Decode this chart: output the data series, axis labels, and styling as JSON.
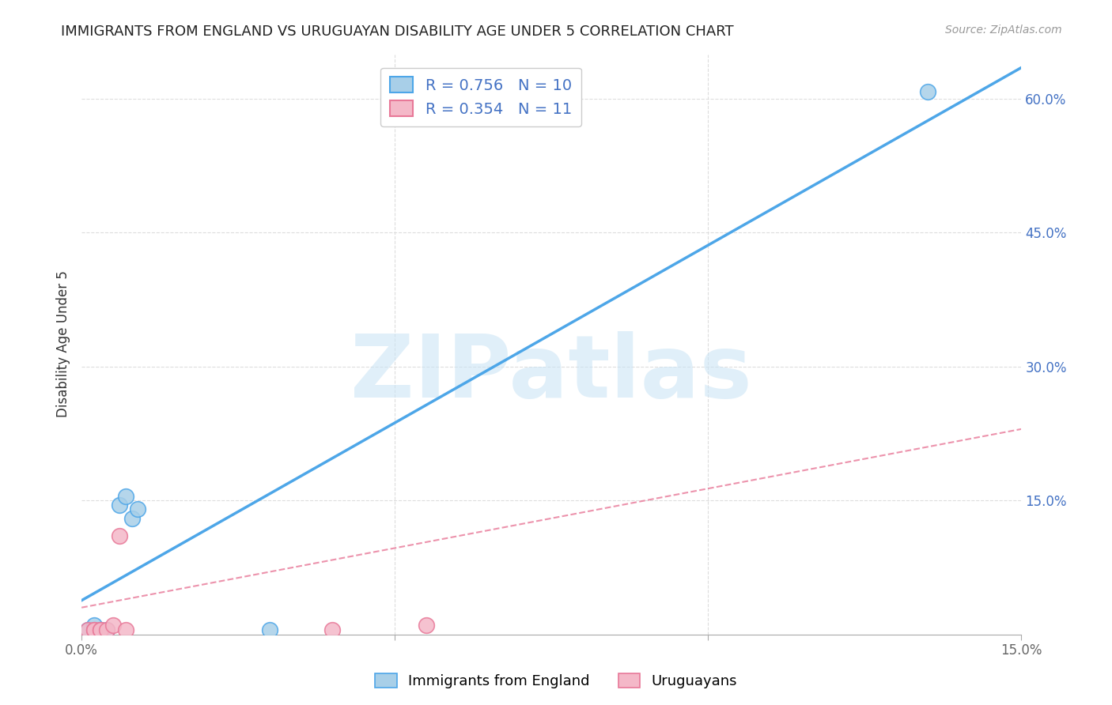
{
  "title": "IMMIGRANTS FROM ENGLAND VS URUGUAYAN DISABILITY AGE UNDER 5 CORRELATION CHART",
  "source": "Source: ZipAtlas.com",
  "ylabel": "Disability Age Under 5",
  "xlabel": "",
  "watermark": "ZIPatlas",
  "xlim": [
    0.0,
    0.15
  ],
  "ylim": [
    0.0,
    0.65
  ],
  "xticks": [
    0.0,
    0.05,
    0.1,
    0.15
  ],
  "xticklabels": [
    "0.0%",
    "",
    "",
    "15.0%"
  ],
  "yticks_right": [
    0.15,
    0.3,
    0.45,
    0.6
  ],
  "ytick_labels_right": [
    "15.0%",
    "30.0%",
    "45.0%",
    "60.0%"
  ],
  "england_x": [
    0.001,
    0.002,
    0.003,
    0.004,
    0.006,
    0.007,
    0.008,
    0.009,
    0.03,
    0.135
  ],
  "england_y": [
    0.005,
    0.01,
    0.005,
    0.005,
    0.145,
    0.155,
    0.13,
    0.14,
    0.005,
    0.608
  ],
  "uruguay_x": [
    0.001,
    0.002,
    0.002,
    0.003,
    0.003,
    0.004,
    0.005,
    0.006,
    0.007,
    0.04,
    0.055
  ],
  "uruguay_y": [
    0.005,
    0.005,
    0.005,
    0.005,
    0.005,
    0.005,
    0.01,
    0.11,
    0.005,
    0.005,
    0.01
  ],
  "england_color": "#a8cfe8",
  "uruguay_color": "#f4b8c8",
  "england_line_color": "#4da6e8",
  "uruguay_line_color": "#e87898",
  "eng_line_x0": 0.0,
  "eng_line_y0": 0.038,
  "eng_line_x1": 0.15,
  "eng_line_y1": 0.635,
  "uru_line_x0": 0.0,
  "uru_line_y0": 0.03,
  "uru_line_x1": 0.15,
  "uru_line_y1": 0.23,
  "R_england": 0.756,
  "N_england": 10,
  "R_uruguay": 0.354,
  "N_uruguay": 11,
  "title_fontsize": 13,
  "legend_fontsize": 13,
  "axis_label_fontsize": 12,
  "tick_fontsize": 12,
  "right_tick_color": "#4472c4"
}
